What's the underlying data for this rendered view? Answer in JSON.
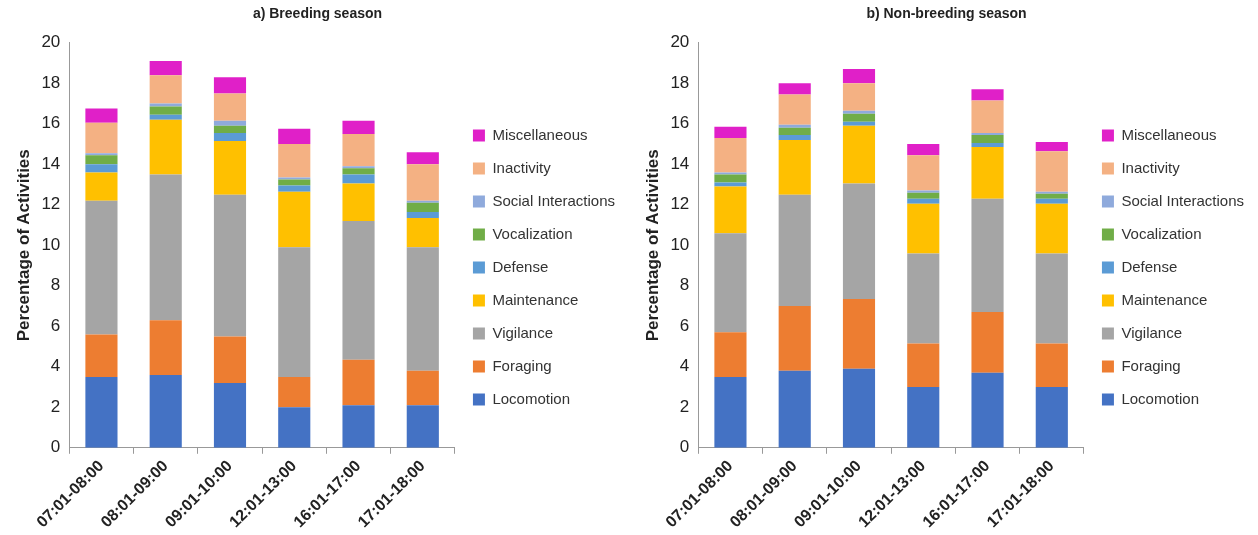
{
  "chart_data": [
    {
      "type": "bar",
      "title": "a) Breeding season",
      "ylabel": "Percentage of Activities",
      "stacked": true,
      "legend": "right",
      "categories": [
        "07:01-08:00",
        "08:01-09:00",
        "09:01-10:00",
        "12:01-13:00",
        "16:01-17:00",
        "17:01-18:00"
      ],
      "ylim": [
        0,
        20
      ],
      "yticks": [
        0,
        2,
        4,
        6,
        8,
        10,
        12,
        14,
        16,
        18,
        20
      ],
      "series": [
        {
          "name": "Locomotion",
          "color": "#4472c4",
          "values": [
            3.5,
            3.6,
            3.2,
            2.0,
            2.1,
            2.1
          ]
        },
        {
          "name": "Foraging",
          "color": "#ed7d31",
          "values": [
            2.1,
            2.7,
            2.3,
            1.5,
            2.25,
            1.7
          ]
        },
        {
          "name": "Vigilance",
          "color": "#a5a5a5",
          "values": [
            6.6,
            7.2,
            7.0,
            6.4,
            6.85,
            6.1
          ]
        },
        {
          "name": "Maintenance",
          "color": "#ffc000",
          "values": [
            1.4,
            2.7,
            2.65,
            2.75,
            1.85,
            1.45
          ]
        },
        {
          "name": "Defense",
          "color": "#5b9bd5",
          "values": [
            0.4,
            0.25,
            0.4,
            0.3,
            0.45,
            0.3
          ]
        },
        {
          "name": "Vocalization",
          "color": "#70ad47",
          "values": [
            0.45,
            0.4,
            0.35,
            0.3,
            0.3,
            0.45
          ]
        },
        {
          "name": "Social Interactions",
          "color": "#8faadc",
          "values": [
            0.1,
            0.15,
            0.25,
            0.1,
            0.1,
            0.1
          ]
        },
        {
          "name": "Inactivity",
          "color": "#f4b183",
          "values": [
            1.5,
            1.4,
            1.35,
            1.65,
            1.6,
            1.8
          ]
        },
        {
          "name": "Miscellaneous",
          "color": "#e020c8",
          "values": [
            0.7,
            0.7,
            0.8,
            0.75,
            0.65,
            0.6
          ]
        }
      ]
    },
    {
      "type": "bar",
      "title": "b) Non-breeding season",
      "ylabel": "Percentage of Activities",
      "stacked": true,
      "legend": "right",
      "categories": [
        "07:01-08:00",
        "08:01-09:00",
        "09:01-10:00",
        "12:01-13:00",
        "16:01-17:00",
        "17:01-18:00"
      ],
      "ylim": [
        0,
        20
      ],
      "yticks": [
        0,
        2,
        4,
        6,
        8,
        10,
        12,
        14,
        16,
        18,
        20
      ],
      "series": [
        {
          "name": "Locomotion",
          "color": "#4472c4",
          "values": [
            3.5,
            3.8,
            3.9,
            3.0,
            3.7,
            3.0
          ]
        },
        {
          "name": "Foraging",
          "color": "#ed7d31",
          "values": [
            2.2,
            3.2,
            3.45,
            2.15,
            3.0,
            2.15
          ]
        },
        {
          "name": "Vigilance",
          "color": "#a5a5a5",
          "values": [
            4.9,
            5.5,
            5.7,
            4.45,
            5.6,
            4.45
          ]
        },
        {
          "name": "Maintenance",
          "color": "#ffc000",
          "values": [
            2.3,
            2.7,
            2.85,
            2.45,
            2.55,
            2.45
          ]
        },
        {
          "name": "Defense",
          "color": "#5b9bd5",
          "values": [
            0.2,
            0.25,
            0.2,
            0.25,
            0.2,
            0.25
          ]
        },
        {
          "name": "Vocalization",
          "color": "#70ad47",
          "values": [
            0.4,
            0.35,
            0.4,
            0.3,
            0.4,
            0.25
          ]
        },
        {
          "name": "Social Interactions",
          "color": "#8faadc",
          "values": [
            0.1,
            0.15,
            0.15,
            0.1,
            0.1,
            0.1
          ]
        },
        {
          "name": "Inactivity",
          "color": "#f4b183",
          "values": [
            1.7,
            1.5,
            1.35,
            1.75,
            1.6,
            2.0
          ]
        },
        {
          "name": "Miscellaneous",
          "color": "#e020c8",
          "values": [
            0.55,
            0.55,
            0.7,
            0.55,
            0.55,
            0.45
          ]
        }
      ]
    }
  ]
}
